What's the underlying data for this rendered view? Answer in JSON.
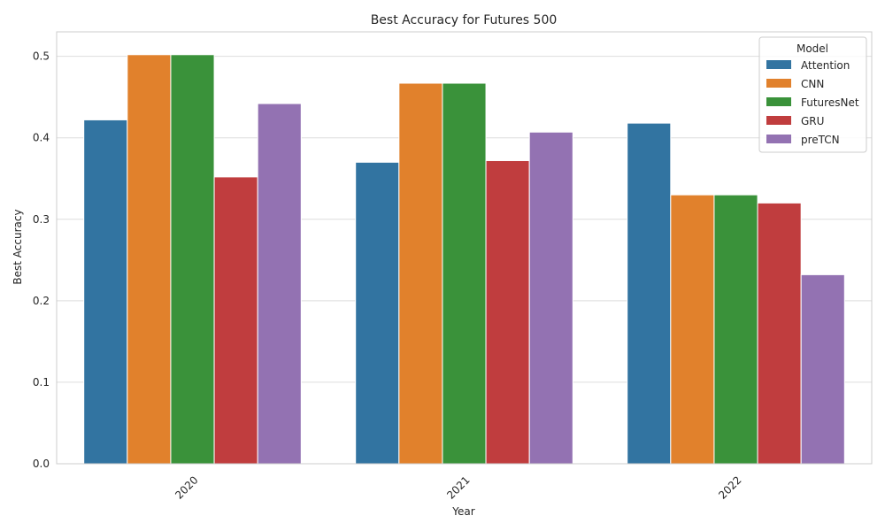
{
  "chart_data": {
    "type": "bar",
    "title": "Best Accuracy for Futures 500",
    "xlabel": "Year",
    "ylabel": "Best Accuracy",
    "categories": [
      "2020",
      "2021",
      "2022"
    ],
    "ylim": [
      0,
      0.53
    ],
    "yticks": [
      "0.0",
      "0.1",
      "0.2",
      "0.3",
      "0.4",
      "0.5"
    ],
    "grid": "horizontal",
    "legend_title": "Model",
    "legend_position": "top-right",
    "series": [
      {
        "name": "Attention",
        "color": "#3274a1",
        "values": [
          0.422,
          0.37,
          0.418
        ]
      },
      {
        "name": "CNN",
        "color": "#e1812c",
        "values": [
          0.502,
          0.467,
          0.33
        ]
      },
      {
        "name": "FuturesNet",
        "color": "#3a923a",
        "values": [
          0.502,
          0.467,
          0.33
        ]
      },
      {
        "name": "GRU",
        "color": "#c03d3e",
        "values": [
          0.352,
          0.372,
          0.32
        ]
      },
      {
        "name": "preTCN",
        "color": "#9372b2",
        "values": [
          0.442,
          0.407,
          0.232
        ]
      }
    ]
  }
}
